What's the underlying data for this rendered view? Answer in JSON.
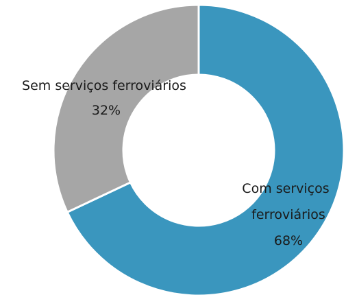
{
  "chart_data": {
    "type": "pie",
    "variant": "donut",
    "slices": [
      {
        "label_lines": [
          "Com serviços",
          "ferroviários"
        ],
        "value_label": "68%",
        "value": 68,
        "color": "#3A96BE"
      },
      {
        "label_lines": [
          "Sem serviços ferroviários"
        ],
        "value_label": "32%",
        "value": 32,
        "color": "#A6A6A6"
      }
    ],
    "separator_color": "#FFFFFF"
  }
}
